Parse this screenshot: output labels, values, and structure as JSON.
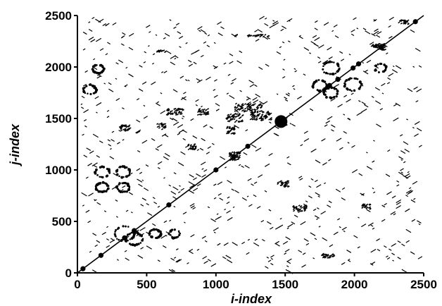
{
  "chart_data": {
    "type": "scatter",
    "xlabel": "i-index",
    "ylabel": "j-index",
    "xlim": [
      0,
      2500
    ],
    "ylim": [
      0,
      2500
    ],
    "x_ticks": [
      "0",
      "500",
      "1000",
      "1500",
      "2000",
      "2500"
    ],
    "y_ticks": [
      "0",
      "500",
      "1000",
      "1500",
      "2000",
      "2500"
    ],
    "grid": false,
    "colors": {
      "points": "#000000",
      "axis": "#000000",
      "background": "#ffffff"
    },
    "diagonal_line": {
      "from": [
        0,
        0
      ],
      "to": [
        2500,
        2500
      ]
    },
    "diagonal_markers": [
      [
        40,
        40
      ],
      [
        170,
        170
      ],
      [
        340,
        340
      ],
      [
        410,
        410
      ],
      [
        660,
        660
      ],
      [
        1000,
        1000
      ],
      [
        1130,
        1130
      ],
      [
        1230,
        1230
      ],
      [
        1470,
        1470
      ],
      [
        1820,
        1820
      ],
      [
        1880,
        1880
      ],
      [
        1990,
        1990
      ],
      [
        2030,
        2030
      ],
      [
        2190,
        2190
      ],
      [
        2440,
        2440
      ]
    ],
    "circle_clusters": [
      [
        340,
        380,
        70
      ],
      [
        410,
        330,
        60
      ],
      [
        180,
        980,
        50
      ],
      [
        330,
        980,
        50
      ],
      [
        180,
        830,
        45
      ],
      [
        330,
        830,
        45
      ],
      [
        560,
        380,
        40
      ],
      [
        700,
        380,
        40
      ],
      [
        1990,
        1830,
        60
      ],
      [
        1830,
        1990,
        60
      ],
      [
        1750,
        1820,
        50
      ],
      [
        1830,
        1750,
        50
      ],
      [
        2190,
        1990,
        40
      ],
      [
        90,
        1780,
        45
      ],
      [
        150,
        1980,
        40
      ]
    ],
    "stripe_clusters": [
      [
        1470,
        1470,
        70,
        80
      ],
      [
        2190,
        2190,
        60,
        60
      ],
      [
        1130,
        1130,
        80,
        80
      ],
      [
        1230,
        1600,
        200,
        80
      ],
      [
        1320,
        1520,
        150,
        90
      ],
      [
        1130,
        1500,
        120,
        80
      ],
      [
        700,
        1560,
        120,
        60
      ],
      [
        900,
        1560,
        80,
        60
      ],
      [
        1100,
        1380,
        60,
        70
      ],
      [
        340,
        1400,
        80,
        60
      ],
      [
        600,
        1420,
        60,
        60
      ],
      [
        820,
        1220,
        60,
        60
      ],
      [
        1600,
        620,
        100,
        60
      ],
      [
        1480,
        860,
        80,
        60
      ],
      [
        2080,
        640,
        60,
        50
      ],
      [
        2350,
        2430,
        70,
        40
      ],
      [
        2140,
        2200,
        50,
        30
      ],
      [
        600,
        2150,
        60,
        20
      ],
      [
        1300,
        2300,
        160,
        20
      ],
      [
        1800,
        160,
        100,
        40
      ]
    ]
  }
}
